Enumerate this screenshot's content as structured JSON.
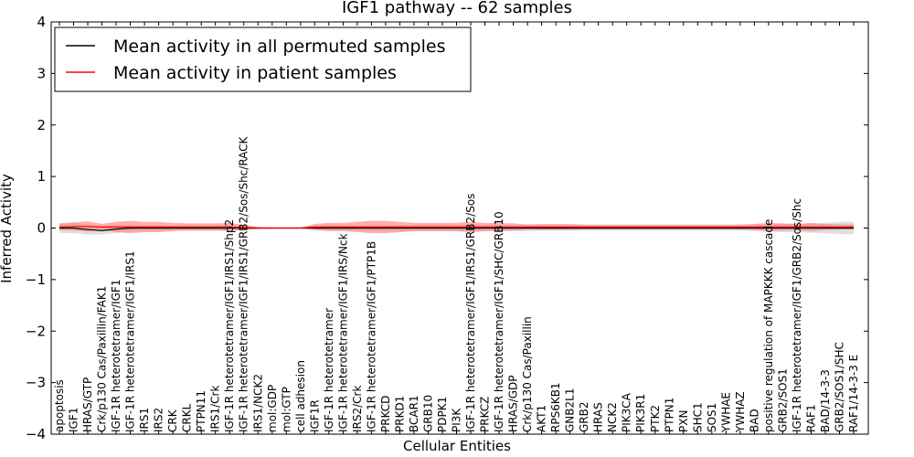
{
  "chart_data": {
    "type": "line",
    "title": "IGF1 pathway -- 62 samples",
    "xlabel": "Cellular Entities",
    "ylabel": "Inferred Activity",
    "ylim": [
      -4,
      4
    ],
    "yticks": [
      -4,
      -3,
      -2,
      -1,
      0,
      1,
      2,
      3,
      4
    ],
    "ytick_labels": [
      "−4",
      "−3",
      "−2",
      "−1",
      "0",
      "1",
      "2",
      "3",
      "4"
    ],
    "grid": false,
    "legend_position": "top-left",
    "colors": {
      "permuted": "#000000",
      "patient": "#ff0000",
      "permuted_band": "#bfbfbf",
      "patient_band": "#ff6b6b"
    },
    "categories": [
      "apoptosis",
      "IGF1",
      "HRAS/GTP",
      "Crk/p130 Cas/Paxillin/FAK1",
      "IGF-1R heterotetramer/IGF1",
      "IGF-1R heterotetramer/IGF1/IRS1",
      "IRS1",
      "IRS2",
      "CRK",
      "CRKL",
      "PTPN11",
      "IRS1/Crk",
      "IGF-1R heterotetramer/IGF1/IRS1/Shp2",
      "IGF-1R heterotetramer/IGF1/IRS1/GRB2/Sos/Shc/RACK",
      "IRS1/NCK2",
      "mol:GDP",
      "mol:GTP",
      "cell adhesion",
      "IGF1R",
      "IGF-1R heterotetramer",
      "IGF-1R heterotetramer/IGF1/IRS/Nck",
      "IRS2/Crk",
      "IGF-1R heterotetramer/IGF1/PTP1B",
      "PRKCD",
      "PRKD1",
      "BCAR1",
      "GRB10",
      "PDPK1",
      "PI3K",
      "IGF-1R heterotetramer/IGF1/IRS1/GRB2/Sos",
      "PRKCZ",
      "IGF-1R heterotetramer/IGF1/SHC/GRB10",
      "HRAS/GDP",
      "Crk/p130 Cas/Paxillin",
      "AKT1",
      "RPS6KB1",
      "GNB2L1",
      "GRB2",
      "HRAS",
      "NCK2",
      "PIK3CA",
      "PIK3R1",
      "PTK2",
      "PTPN1",
      "PXN",
      "SHC1",
      "SOS1",
      "YWHAE",
      "YWHAZ",
      "BAD",
      "positive regulation of MAPKKK cascade",
      "GRB2/SOS1",
      "IGF-1R heterotetramer/IGF1/GRB2/Sos/Shc",
      "RAF1",
      "BAD/14-3-3",
      "GRB2/SOS1/SHC",
      "RAF1/14-3-3 E"
    ],
    "series": [
      {
        "name": "Mean activity in all permuted samples",
        "color": "#000000",
        "values": [
          0.0,
          0.0,
          -0.03,
          -0.05,
          -0.02,
          0.0,
          0.0,
          0.0,
          0.0,
          0.0,
          0.0,
          0.0,
          0.0,
          0.0,
          0.0,
          0.0,
          0.0,
          0.0,
          0.0,
          0.0,
          0.0,
          0.0,
          0.0,
          0.0,
          0.0,
          0.0,
          0.0,
          0.0,
          0.0,
          0.0,
          0.0,
          0.0,
          0.0,
          0.0,
          0.0,
          0.0,
          0.0,
          0.0,
          0.0,
          0.0,
          0.0,
          0.0,
          0.0,
          0.0,
          0.0,
          0.0,
          0.0,
          0.0,
          0.0,
          0.0,
          0.0,
          0.0,
          0.0,
          0.0,
          0.0,
          0.0,
          0.0
        ],
        "band": [
          0.1,
          0.1,
          0.1,
          0.08,
          0.08,
          0.06,
          0.05,
          0.05,
          0.05,
          0.05,
          0.05,
          0.05,
          0.06,
          0.04,
          0.02,
          0.01,
          0.01,
          0.01,
          0.04,
          0.05,
          0.05,
          0.05,
          0.05,
          0.06,
          0.06,
          0.06,
          0.06,
          0.06,
          0.06,
          0.06,
          0.06,
          0.06,
          0.06,
          0.06,
          0.05,
          0.05,
          0.05,
          0.05,
          0.05,
          0.05,
          0.05,
          0.05,
          0.05,
          0.05,
          0.05,
          0.05,
          0.05,
          0.05,
          0.05,
          0.06,
          0.07,
          0.08,
          0.08,
          0.09,
          0.1,
          0.12,
          0.12
        ]
      },
      {
        "name": "Mean activity in patient samples",
        "color": "#ff0000",
        "values": [
          0.02,
          0.03,
          0.03,
          0.02,
          0.02,
          0.02,
          0.02,
          0.02,
          0.02,
          0.02,
          0.02,
          0.02,
          0.02,
          0.01,
          0.0,
          0.0,
          0.0,
          0.0,
          0.02,
          0.02,
          0.02,
          0.02,
          0.02,
          0.02,
          0.02,
          0.02,
          0.02,
          0.02,
          0.02,
          0.02,
          0.02,
          0.02,
          0.02,
          0.02,
          0.02,
          0.02,
          0.02,
          0.02,
          0.02,
          0.02,
          0.02,
          0.02,
          0.02,
          0.02,
          0.02,
          0.02,
          0.02,
          0.02,
          0.02,
          0.02,
          0.02,
          0.02,
          0.02,
          0.02,
          0.02,
          0.02,
          0.02
        ],
        "band": [
          0.06,
          0.08,
          0.1,
          0.06,
          0.1,
          0.12,
          0.1,
          0.1,
          0.08,
          0.07,
          0.07,
          0.07,
          0.08,
          0.05,
          0.02,
          0.01,
          0.01,
          0.01,
          0.06,
          0.08,
          0.08,
          0.1,
          0.12,
          0.12,
          0.1,
          0.08,
          0.08,
          0.08,
          0.08,
          0.1,
          0.08,
          0.08,
          0.07,
          0.05,
          0.06,
          0.06,
          0.06,
          0.05,
          0.05,
          0.05,
          0.05,
          0.05,
          0.05,
          0.05,
          0.05,
          0.05,
          0.05,
          0.05,
          0.05,
          0.06,
          0.08,
          0.07,
          0.06,
          0.08,
          0.06,
          0.05,
          0.05
        ]
      }
    ]
  }
}
